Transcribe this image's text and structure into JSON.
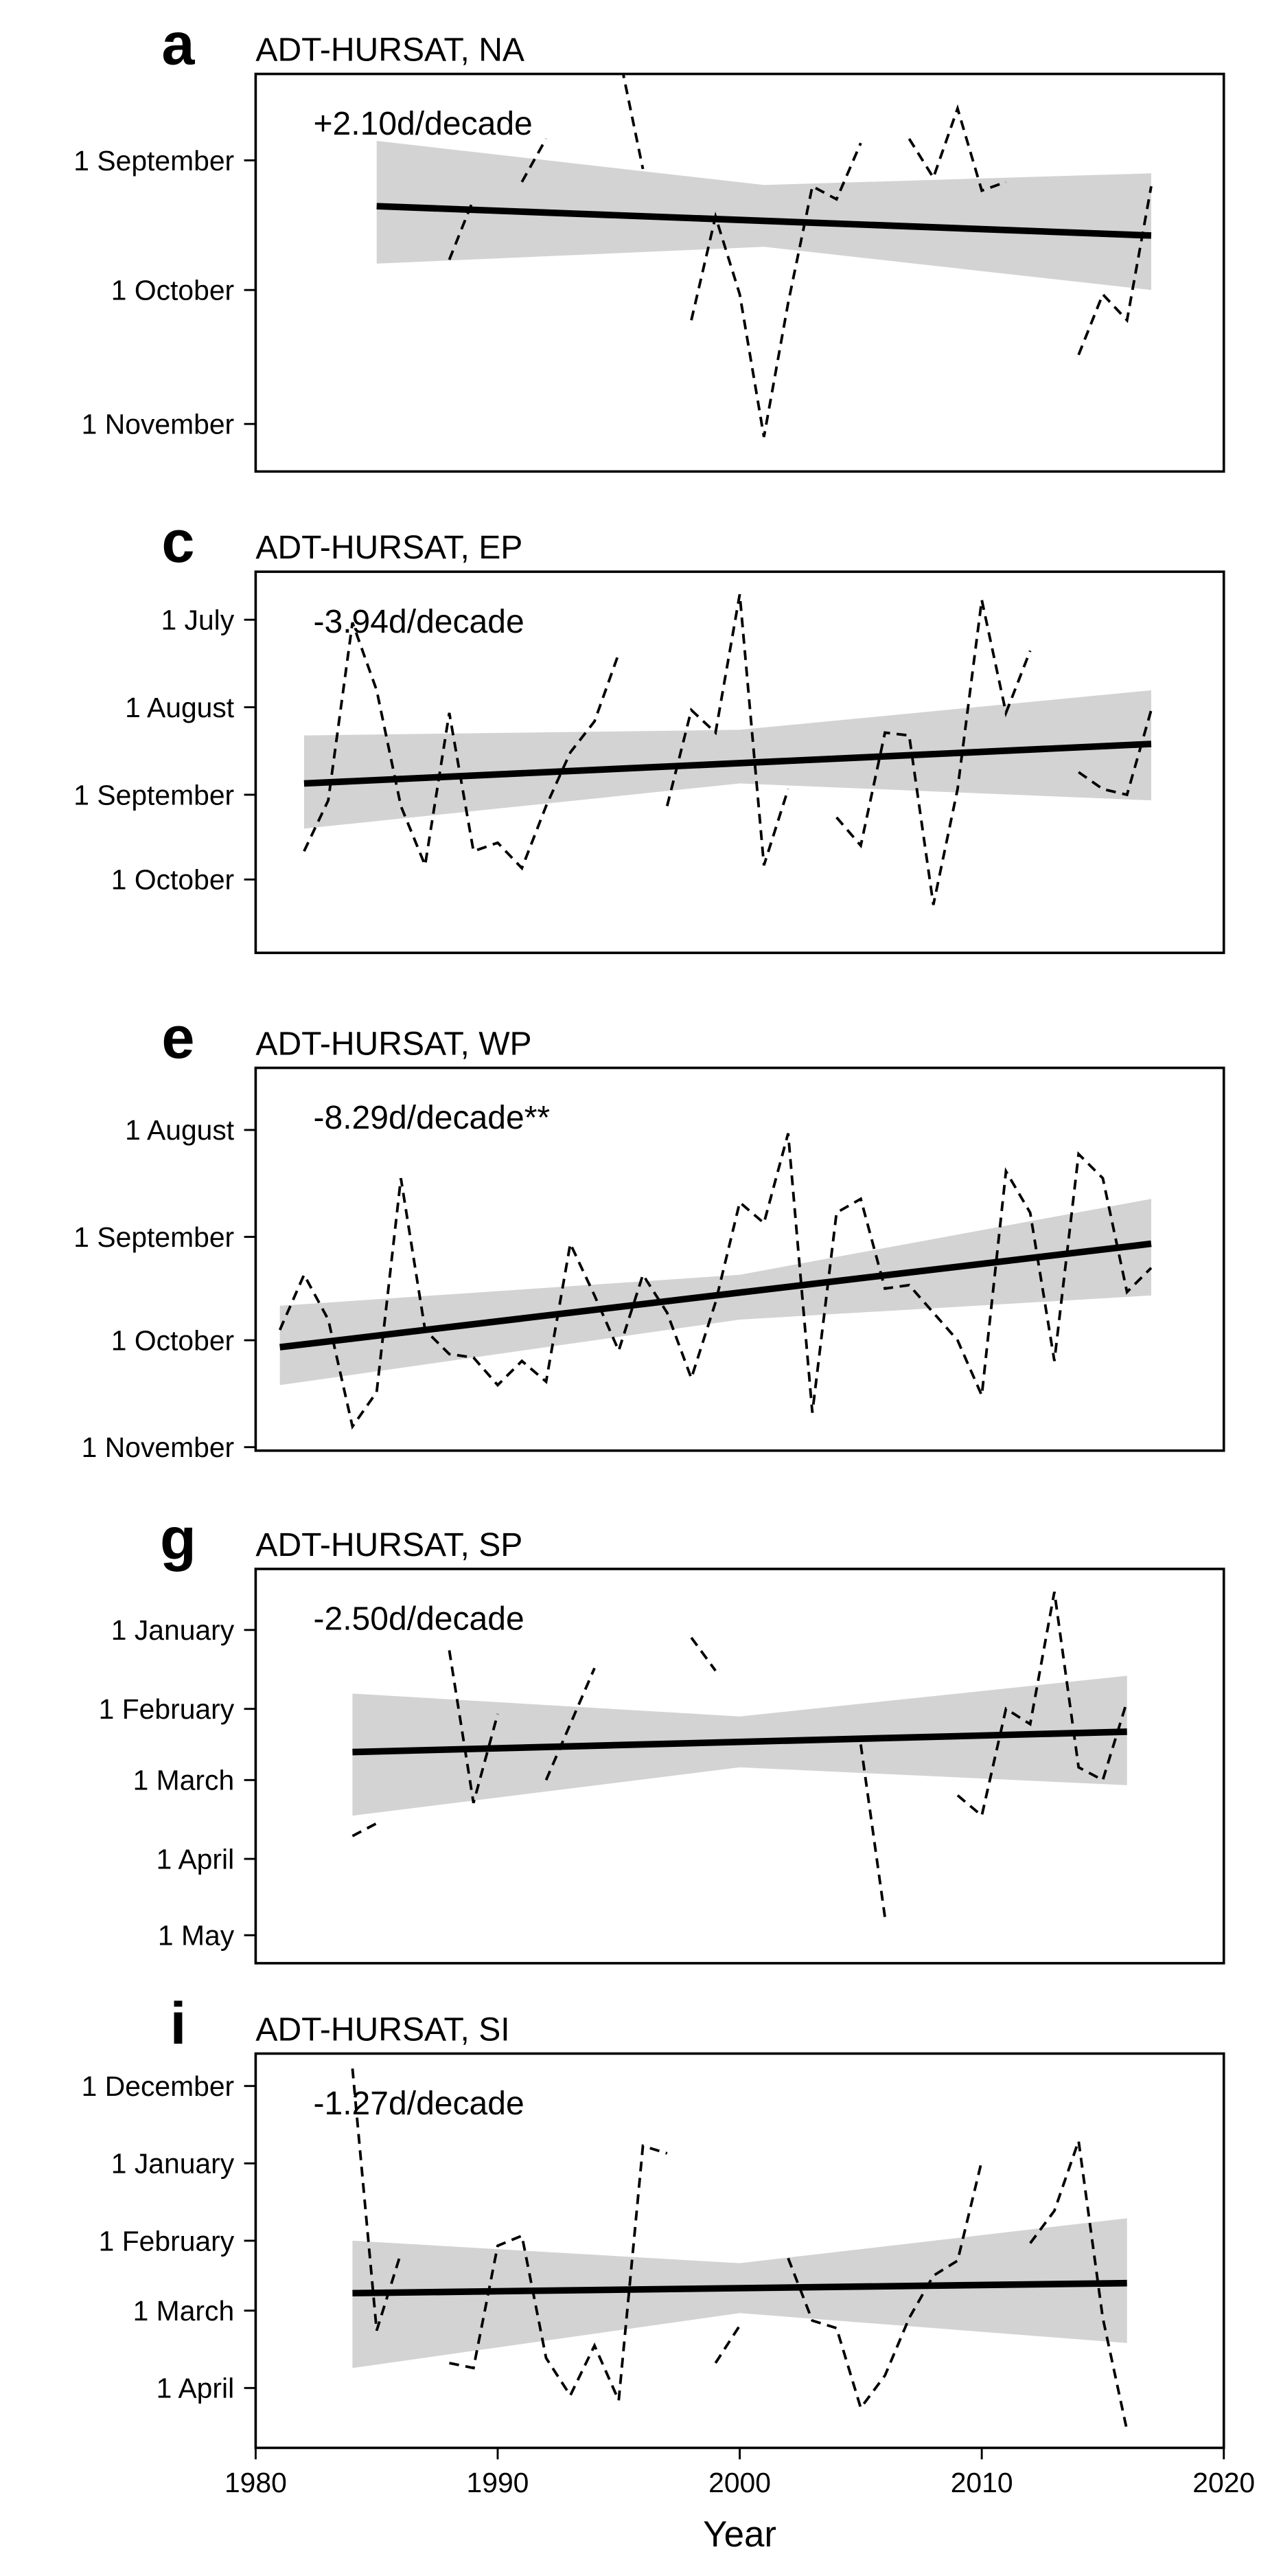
{
  "chart_data": [
    {
      "type": "line",
      "panel": "a",
      "title": "ADT-HURSAT, NA",
      "annotation": "+2.10d/decade",
      "color": "#000000",
      "band_color": "#d3d3d3",
      "x": [
        1988,
        1989,
        1990,
        1991,
        1992,
        1993,
        1994,
        1995,
        1996,
        1997,
        1998,
        1999,
        2000,
        2001,
        2002,
        2003,
        2004,
        2005,
        2006,
        2007,
        2008,
        2009,
        2010,
        2011,
        2012,
        2013,
        2014,
        2015,
        2016,
        2017
      ],
      "values": [
        267,
        253,
        null,
        249,
        239,
        null,
        null,
        219,
        246,
        null,
        281,
        257,
        275,
        308,
        277,
        250,
        253,
        240,
        null,
        239,
        248,
        232,
        251,
        249,
        null,
        null,
        289,
        275,
        281,
        250
      ],
      "trend": {
        "x": [
          1985,
          2017
        ],
        "values": [
          254.6,
          261.4
        ]
      },
      "band": {
        "x": [
          1985,
          2001,
          2017
        ],
        "low": [
          239.5,
          249.7,
          247
        ],
        "high": [
          267.9,
          264,
          274
        ]
      },
      "xlim": [
        1980,
        2020
      ],
      "ylim": [
        316,
        224
      ],
      "yticks": [
        {
          "value": 244,
          "label": "1 September"
        },
        {
          "value": 274,
          "label": "1 October"
        },
        {
          "value": 305,
          "label": "1 November"
        }
      ]
    },
    {
      "type": "line",
      "panel": "c",
      "title": "ADT-HURSAT, EP",
      "annotation": "-3.94d/decade",
      "color": "#000000",
      "band_color": "#d3d3d3",
      "x": [
        1982,
        1983,
        1984,
        1985,
        1986,
        1987,
        1988,
        1989,
        1990,
        1991,
        1992,
        1993,
        1994,
        1995,
        1996,
        1997,
        1998,
        1999,
        2000,
        2001,
        2002,
        2003,
        2004,
        2005,
        2006,
        2007,
        2008,
        2009,
        2010,
        2011,
        2012,
        2013,
        2014,
        2015,
        2016,
        2017
      ],
      "values": [
        264,
        246,
        183,
        207,
        248,
        269,
        215,
        264,
        261,
        270,
        248,
        229,
        218,
        194,
        null,
        248,
        214,
        222,
        173,
        269,
        242,
        null,
        252,
        262,
        222,
        223,
        283,
        242,
        175,
        215,
        193,
        null,
        236,
        242,
        244,
        214
      ],
      "trend": {
        "x": [
          1982,
          2017
        ],
        "values": [
          240,
          226
        ]
      },
      "band": {
        "x": [
          1982,
          2000,
          2017
        ],
        "low": [
          223,
          221,
          207
        ],
        "high": [
          256,
          240,
          246
        ]
      },
      "xlim": [
        1980,
        2020
      ],
      "ylim": [
        300,
        165
      ],
      "yticks": [
        {
          "value": 182,
          "label": "1 July"
        },
        {
          "value": 213,
          "label": "1 August"
        },
        {
          "value": 244,
          "label": "1 September"
        },
        {
          "value": 274,
          "label": "1 October"
        }
      ]
    },
    {
      "type": "line",
      "panel": "e",
      "title": "ADT-HURSAT, WP",
      "annotation": "-8.29d/decade**",
      "color": "#000000",
      "band_color": "#d3d3d3",
      "x": [
        1981,
        1982,
        1983,
        1984,
        1985,
        1986,
        1987,
        1988,
        1989,
        1990,
        1991,
        1992,
        1993,
        1994,
        1995,
        1996,
        1997,
        1998,
        1999,
        2000,
        2001,
        2002,
        2003,
        2004,
        2005,
        2006,
        2007,
        2008,
        2009,
        2010,
        2011,
        2012,
        2013,
        2014,
        2015,
        2016,
        2017
      ],
      "values": [
        271,
        255,
        268,
        299,
        289,
        227,
        271,
        278,
        279,
        287,
        280,
        286,
        246,
        261,
        277,
        255,
        266,
        285,
        263,
        234,
        240,
        214,
        295,
        237,
        233,
        259,
        258,
        266,
        274,
        290,
        225,
        237,
        280,
        220,
        227,
        260,
        253
      ],
      "trend": {
        "x": [
          1981,
          2017
        ],
        "values": [
          276,
          246
        ]
      },
      "band": {
        "x": [
          1981,
          2000,
          2017
        ],
        "low": [
          264,
          255,
          233
        ],
        "high": [
          287,
          268,
          261
        ]
      },
      "xlim": [
        1980,
        2020
      ],
      "ylim": [
        306,
        195
      ],
      "yticks": [
        {
          "value": 213,
          "label": "1 August"
        },
        {
          "value": 244,
          "label": "1 September"
        },
        {
          "value": 274,
          "label": "1 October"
        },
        {
          "value": 305,
          "label": "1 November"
        }
      ]
    },
    {
      "type": "line",
      "panel": "g",
      "title": "ADT-HURSAT, SP",
      "annotation": "-2.50d/decade",
      "color": "#000000",
      "band_color": "#d3d3d3",
      "x": [
        1984,
        1985,
        1986,
        1987,
        1988,
        1989,
        1990,
        1991,
        1992,
        1993,
        1994,
        1995,
        1996,
        1997,
        1998,
        1999,
        2000,
        2001,
        2002,
        2003,
        2004,
        2005,
        2006,
        2007,
        2008,
        2009,
        2010,
        2011,
        2012,
        2013,
        2014,
        2015,
        2016
      ],
      "values": [
        81,
        76,
        null,
        null,
        8,
        68,
        33,
        null,
        59,
        37,
        15,
        null,
        null,
        null,
        3,
        16,
        null,
        null,
        null,
        null,
        null,
        45,
        113,
        null,
        null,
        65,
        73,
        31,
        37,
        -15,
        54,
        59,
        28
      ],
      "trend": {
        "x": [
          1984,
          2016
        ],
        "values": [
          48,
          40
        ]
      },
      "band": {
        "x": [
          1984,
          2000,
          2016
        ],
        "low": [
          25,
          34,
          18
        ],
        "high": [
          73,
          54,
          61
        ]
      },
      "xlim": [
        1980,
        2020
      ],
      "ylim": [
        131,
        -24
      ],
      "yticks": [
        {
          "value": 0,
          "label": "1 January"
        },
        {
          "value": 31,
          "label": "1 February"
        },
        {
          "value": 59,
          "label": "1 March"
        },
        {
          "value": 90,
          "label": "1 April"
        },
        {
          "value": 120,
          "label": "1 May"
        }
      ]
    },
    {
      "type": "line",
      "panel": "i",
      "title": "ADT-HURSAT, SI",
      "annotation": "-1.27d/decade",
      "color": "#000000",
      "band_color": "#d3d3d3",
      "x": [
        1984,
        1985,
        1986,
        1987,
        1988,
        1989,
        1990,
        1991,
        1992,
        1993,
        1994,
        1995,
        1996,
        1997,
        1998,
        1999,
        2000,
        2001,
        2002,
        2003,
        2004,
        2005,
        2006,
        2007,
        2008,
        2009,
        2010,
        2011,
        2012,
        2013,
        2014,
        2015,
        2016
      ],
      "values": [
        -38,
        67,
        36,
        null,
        80,
        82,
        33,
        29,
        78,
        93,
        73,
        95,
        -7,
        -4,
        null,
        80,
        65,
        null,
        38,
        63,
        66,
        98,
        85,
        62,
        45,
        39,
        -1,
        null,
        32,
        19,
        -9,
        62,
        107
      ],
      "trend": {
        "x": [
          1984,
          2016
        ],
        "values": [
          52,
          48
        ]
      },
      "band": {
        "x": [
          1984,
          2000,
          2016
        ],
        "low": [
          31,
          40,
          22
        ],
        "high": [
          82,
          60,
          72
        ]
      },
      "xlim": [
        1980,
        2020
      ],
      "ylim": [
        114,
        -44
      ],
      "yticks": [
        {
          "value": -31,
          "label": "1 December"
        },
        {
          "value": 0,
          "label": "1 January"
        },
        {
          "value": 31,
          "label": "1 February"
        },
        {
          "value": 59,
          "label": "1 March"
        },
        {
          "value": 90,
          "label": "1 April"
        }
      ],
      "xticks": [
        1980,
        1990,
        2000,
        2010,
        2020
      ],
      "xlabel": "Year"
    }
  ]
}
